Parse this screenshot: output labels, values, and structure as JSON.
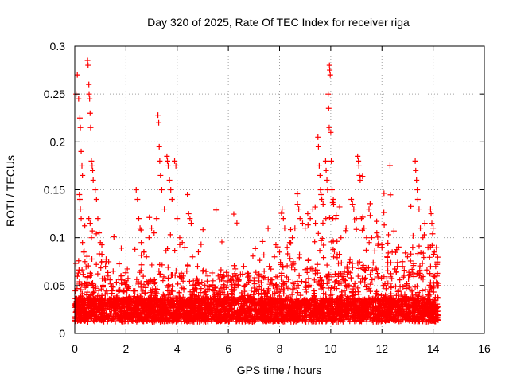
{
  "chart_data": {
    "type": "scatter",
    "title": "Day 320 of 2025, Rate Of TEC Index for receiver riga",
    "xlabel": "GPS time / hours",
    "ylabel": "ROTI / TECUs",
    "xlim": [
      0,
      16
    ],
    "ylim": [
      0,
      0.3
    ],
    "xticks": [
      0,
      2,
      4,
      6,
      8,
      10,
      12,
      14,
      16
    ],
    "xtick_labels": [
      "0",
      "2",
      "4",
      "6",
      "8",
      "10",
      "12",
      "14",
      "16"
    ],
    "yticks": [
      0,
      0.05,
      0.1,
      0.15,
      0.2,
      0.25,
      0.3
    ],
    "ytick_labels": [
      "0",
      "0.05",
      "0.1",
      "0.15",
      "0.2",
      "0.25",
      "0.3"
    ],
    "grid": true,
    "marker": "+",
    "color": "#ff0000",
    "data_x_range": [
      0,
      14.2
    ],
    "series": [
      {
        "name": "ROTI",
        "points": [
          [
            0.05,
            0.25
          ],
          [
            0.1,
            0.27
          ],
          [
            0.15,
            0.245
          ],
          [
            0.2,
            0.225
          ],
          [
            0.22,
            0.215
          ],
          [
            0.25,
            0.19
          ],
          [
            0.28,
            0.175
          ],
          [
            0.3,
            0.165
          ],
          [
            0.18,
            0.145
          ],
          [
            0.2,
            0.14
          ],
          [
            0.22,
            0.13
          ],
          [
            0.25,
            0.12
          ],
          [
            0.3,
            0.095
          ],
          [
            0.35,
            0.085
          ],
          [
            0.4,
            0.075
          ],
          [
            0.5,
            0.285
          ],
          [
            0.52,
            0.28
          ],
          [
            0.55,
            0.26
          ],
          [
            0.56,
            0.25
          ],
          [
            0.58,
            0.245
          ],
          [
            0.6,
            0.23
          ],
          [
            0.62,
            0.215
          ],
          [
            0.65,
            0.18
          ],
          [
            0.68,
            0.175
          ],
          [
            0.7,
            0.17
          ],
          [
            0.72,
            0.16
          ],
          [
            0.55,
            0.12
          ],
          [
            0.6,
            0.115
          ],
          [
            0.65,
            0.1
          ],
          [
            0.8,
            0.15
          ],
          [
            0.85,
            0.14
          ],
          [
            0.9,
            0.12
          ],
          [
            0.95,
            0.105
          ],
          [
            1.0,
            0.095
          ],
          [
            1.1,
            0.075
          ],
          [
            1.2,
            0.07
          ],
          [
            1.3,
            0.06
          ],
          [
            1.5,
            0.065
          ],
          [
            1.8,
            0.06
          ],
          [
            2.0,
            0.055
          ],
          [
            2.4,
            0.15
          ],
          [
            2.45,
            0.14
          ],
          [
            2.5,
            0.12
          ],
          [
            2.55,
            0.11
          ],
          [
            2.6,
            0.095
          ],
          [
            2.7,
            0.085
          ],
          [
            2.8,
            0.08
          ],
          [
            2.9,
            0.1
          ],
          [
            3.0,
            0.11
          ],
          [
            3.1,
            0.105
          ],
          [
            3.2,
            0.12
          ],
          [
            3.25,
            0.228
          ],
          [
            3.28,
            0.22
          ],
          [
            3.3,
            0.195
          ],
          [
            3.32,
            0.18
          ],
          [
            3.35,
            0.165
          ],
          [
            3.4,
            0.15
          ],
          [
            3.5,
            0.13
          ],
          [
            3.6,
            0.185
          ],
          [
            3.62,
            0.18
          ],
          [
            3.65,
            0.175
          ],
          [
            3.7,
            0.16
          ],
          [
            3.75,
            0.15
          ],
          [
            3.8,
            0.14
          ],
          [
            3.9,
            0.18
          ],
          [
            3.95,
            0.175
          ],
          [
            4.0,
            0.12
          ],
          [
            4.1,
            0.1
          ],
          [
            4.2,
            0.095
          ],
          [
            4.3,
            0.09
          ],
          [
            4.4,
            0.145
          ],
          [
            4.45,
            0.125
          ],
          [
            4.5,
            0.12
          ],
          [
            4.55,
            0.115
          ],
          [
            4.6,
            0.08
          ],
          [
            4.8,
            0.07
          ],
          [
            5.0,
            0.065
          ],
          [
            5.2,
            0.06
          ],
          [
            5.4,
            0.055
          ],
          [
            5.6,
            0.06
          ],
          [
            5.8,
            0.055
          ],
          [
            6.0,
            0.06
          ],
          [
            6.2,
            0.055
          ],
          [
            6.4,
            0.05
          ],
          [
            6.6,
            0.07
          ],
          [
            6.8,
            0.06
          ],
          [
            7.0,
            0.055
          ],
          [
            7.2,
            0.06
          ],
          [
            7.4,
            0.065
          ],
          [
            7.6,
            0.07
          ],
          [
            7.8,
            0.08
          ],
          [
            8.0,
            0.085
          ],
          [
            8.1,
            0.13
          ],
          [
            8.15,
            0.12
          ],
          [
            8.2,
            0.11
          ],
          [
            8.3,
            0.09
          ],
          [
            8.4,
            0.095
          ],
          [
            8.5,
            0.1
          ],
          [
            8.6,
            0.11
          ],
          [
            8.7,
            0.135
          ],
          [
            8.75,
            0.13
          ],
          [
            8.8,
            0.12
          ],
          [
            8.9,
            0.115
          ],
          [
            9.0,
            0.11
          ],
          [
            9.1,
            0.125
          ],
          [
            9.2,
            0.12
          ],
          [
            9.3,
            0.13
          ],
          [
            9.4,
            0.115
          ],
          [
            9.5,
            0.205
          ],
          [
            9.52,
            0.195
          ],
          [
            9.55,
            0.175
          ],
          [
            9.58,
            0.165
          ],
          [
            9.6,
            0.15
          ],
          [
            9.62,
            0.145
          ],
          [
            9.65,
            0.14
          ],
          [
            9.7,
            0.135
          ],
          [
            9.8,
            0.18
          ],
          [
            9.82,
            0.17
          ],
          [
            9.85,
            0.16
          ],
          [
            9.88,
            0.15
          ],
          [
            9.9,
            0.25
          ],
          [
            9.92,
            0.235
          ],
          [
            9.94,
            0.215
          ],
          [
            9.95,
            0.28
          ],
          [
            9.96,
            0.275
          ],
          [
            9.98,
            0.27
          ],
          [
            10.0,
            0.21
          ],
          [
            10.02,
            0.18
          ],
          [
            10.05,
            0.15
          ],
          [
            10.1,
            0.14
          ],
          [
            10.2,
            0.12
          ],
          [
            10.4,
            0.1
          ],
          [
            10.6,
            0.11
          ],
          [
            10.8,
            0.14
          ],
          [
            10.85,
            0.135
          ],
          [
            10.9,
            0.13
          ],
          [
            11.0,
            0.12
          ],
          [
            11.05,
            0.185
          ],
          [
            11.08,
            0.18
          ],
          [
            11.1,
            0.175
          ],
          [
            11.12,
            0.165
          ],
          [
            11.15,
            0.16
          ],
          [
            11.2,
            0.12
          ],
          [
            11.3,
            0.11
          ],
          [
            11.4,
            0.1
          ],
          [
            11.5,
            0.095
          ],
          [
            11.6,
            0.1
          ],
          [
            11.8,
            0.105
          ],
          [
            12.0,
            0.09
          ],
          [
            12.2,
            0.08
          ],
          [
            12.4,
            0.085
          ],
          [
            12.6,
            0.07
          ],
          [
            12.8,
            0.075
          ],
          [
            13.0,
            0.08
          ],
          [
            13.2,
            0.09
          ],
          [
            13.3,
            0.18
          ],
          [
            13.32,
            0.17
          ],
          [
            13.35,
            0.16
          ],
          [
            13.38,
            0.15
          ],
          [
            13.4,
            0.14
          ],
          [
            13.45,
            0.13
          ],
          [
            13.5,
            0.11
          ],
          [
            13.6,
            0.1
          ],
          [
            13.8,
            0.09
          ],
          [
            13.9,
            0.13
          ],
          [
            13.92,
            0.125
          ],
          [
            13.95,
            0.115
          ],
          [
            14.0,
            0.11
          ],
          [
            14.05,
            0.085
          ],
          [
            14.1,
            0.07
          ],
          [
            14.15,
            0.06
          ],
          [
            14.2,
            0.05
          ]
        ]
      }
    ]
  }
}
